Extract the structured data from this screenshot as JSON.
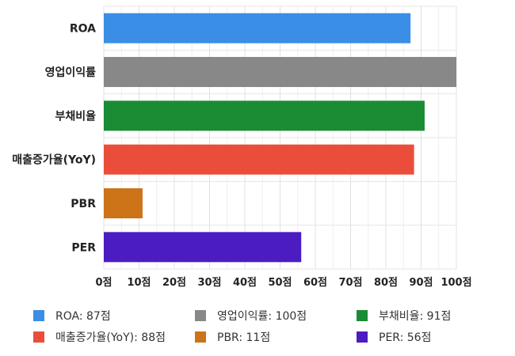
{
  "chart_data": {
    "type": "bar",
    "orientation": "horizontal",
    "title": "",
    "xlabel": "",
    "ylabel": "",
    "xlim": [
      0,
      100
    ],
    "grid": true,
    "categories": [
      "ROA",
      "영업이익률",
      "부채비율",
      "매출증가율(YoY)",
      "PBR",
      "PER"
    ],
    "values": [
      87,
      100,
      91,
      88,
      11,
      56
    ],
    "colors": [
      "#3a8ee6",
      "#888888",
      "#1a8c34",
      "#ea4e3a",
      "#cd7318",
      "#4b1cc2"
    ],
    "ticks": [
      0,
      10,
      20,
      30,
      40,
      50,
      60,
      70,
      80,
      90,
      100
    ],
    "tick_labels": [
      "0점",
      "10점",
      "20점",
      "30점",
      "40점",
      "50점",
      "60점",
      "70점",
      "80점",
      "90점",
      "100점"
    ],
    "legend_position": "bottom",
    "legend": [
      "ROA: 87점",
      "영업이익률: 100점",
      "부채비율: 91점",
      "매출증가율(YoY): 88점",
      "PBR: 11점",
      "PER: 56점"
    ]
  }
}
